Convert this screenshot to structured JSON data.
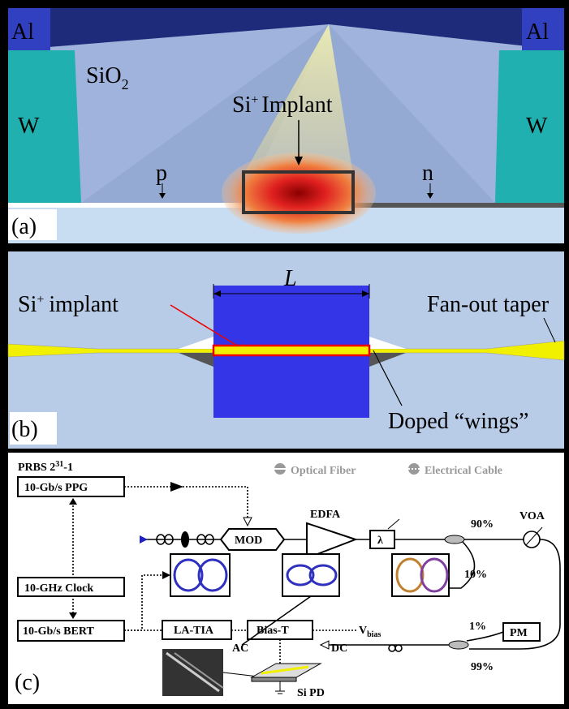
{
  "panel_a": {
    "label": "(a)",
    "al_left": "Al",
    "al_right": "Al",
    "w_left": "W",
    "w_right": "W",
    "sio2": "SiO",
    "sio2_sub": "2",
    "implant_si": "Si",
    "implant_sup": "+",
    "implant_text": "Implant",
    "p": "p",
    "n": "n"
  },
  "panel_b": {
    "label": "(b)",
    "length": "L",
    "implant_si": "Si",
    "implant_sup": "+",
    "implant_text": "implant",
    "taper": "Fan-out taper",
    "wings": "Doped “wings”"
  },
  "panel_c": {
    "label": "(c)",
    "prbs": "PRBS 2",
    "prbs_sup": "31",
    "prbs_end": "-1",
    "ppg": "10-Gb/s PPG",
    "clock": "10-GHz Clock",
    "bert": "10-Gb/s BERT",
    "legend_fiber": "Optical Fiber",
    "legend_cable": "Electrical Cable",
    "mod": "MOD",
    "edfa": "EDFA",
    "filter": "λ",
    "split_90": "90%",
    "split_10": "10%",
    "voa": "VOA",
    "la_tia": "LA-TIA",
    "bias_t": "Bias-T",
    "ac": "AC",
    "dc": "DC",
    "vbias": "V",
    "vbias_sub": "bias",
    "split_1": "1%",
    "pm": "PM",
    "split_99": "99%",
    "si_pd": "Si PD"
  }
}
